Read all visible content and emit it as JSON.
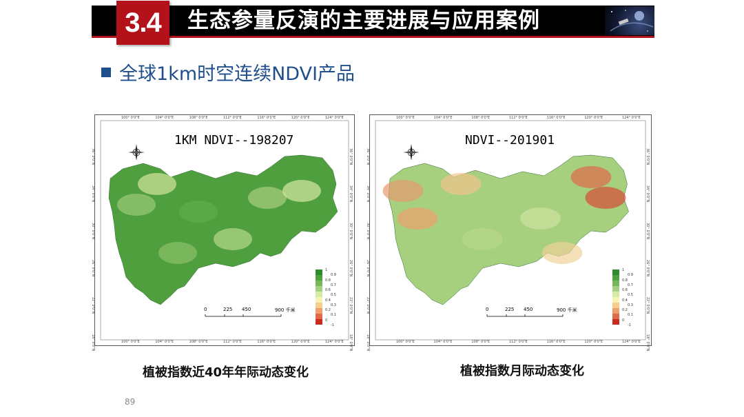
{
  "header": {
    "section_number": "3.4",
    "title": "生态参量反演的主要进展与应用案例",
    "title_image_icon": "satellite-space-image"
  },
  "subtitle": "全球1km时空连续NDVI产品",
  "maps": [
    {
      "title": "1KM NDVI--198207",
      "caption": "植被指数近40年年际动态变化",
      "scale_labels": [
        "0",
        "225",
        "450",
        "900 千米"
      ],
      "legend_labels": [
        "1",
        "0.9",
        "0.8",
        "0.7",
        "0.6",
        "0.5",
        "0.4",
        "0.3",
        "0.2",
        "0.1",
        "0",
        "-1"
      ],
      "top_ticks": [
        "100° 0'0\"E",
        "104° 0'0\"E",
        "108° 0'0\"E",
        "112° 0'0\"E",
        "116° 0'0\"E",
        "120° 0'0\"E",
        "124° 0'0\"E"
      ],
      "bottom_ticks": [
        "100° 0'0\"E",
        "104° 0'0\"E",
        "108° 0'0\"E",
        "112° 0'0\"E",
        "116° 0'0\"E",
        "120° 0'0\"E",
        "124° 0'0\"E"
      ],
      "left_ticks": [
        "36° 0'0\"N",
        "34° 0'0\"N",
        "30° 0'0\"N",
        "26° 0'0\"N",
        "22° 0'0\"N",
        "18° 0'0\"N"
      ],
      "right_ticks": [
        "36° 0'0\"N",
        "34° 0'0\"N",
        "30° 0'0\"N",
        "26° 0'0\"N",
        "22° 0'0\"N",
        "18° 0'0\"N"
      ]
    },
    {
      "title": "NDVI--201901",
      "caption": "植被指数月际动态变化",
      "scale_labels": [
        "0",
        "225",
        "450",
        "900 千米"
      ],
      "legend_labels": [
        "1",
        "0.9",
        "0.8",
        "0.7",
        "0.6",
        "0.5",
        "0.4",
        "0.3",
        "0.2",
        "0.1",
        "0",
        "-1"
      ],
      "top_ticks": [
        "100° 0'0\"E",
        "104° 0'0\"E",
        "108° 0'0\"E",
        "112° 0'0\"E",
        "116° 0'0\"E",
        "120° 0'0\"E",
        "124° 0'0\"E"
      ],
      "bottom_ticks": [
        "100° 0'0\"E",
        "104° 0'0\"E",
        "108° 0'0\"E",
        "112° 0'0\"E",
        "116° 0'0\"E",
        "120° 0'0\"E",
        "124° 0'0\"E"
      ],
      "left_ticks": [
        "36° 0'0\"N",
        "34° 0'0\"N",
        "30° 0'0\"N",
        "26° 0'0\"N",
        "22° 0'0\"N",
        "18° 0'0\"N"
      ],
      "right_ticks": [
        "36° 0'0\"N",
        "34° 0'0\"N",
        "30° 0'0\"N",
        "26° 0'0\"N",
        "22° 0'0\"N",
        "18° 0'0\"N"
      ]
    }
  ],
  "page_number": "89",
  "colors": {
    "title_bar": "#000000",
    "badge": "#b3121a",
    "subtitle": "#1f4e8c",
    "ndvi_high": "#3a8f3a",
    "ndvi_low": "#cc2a1e"
  }
}
